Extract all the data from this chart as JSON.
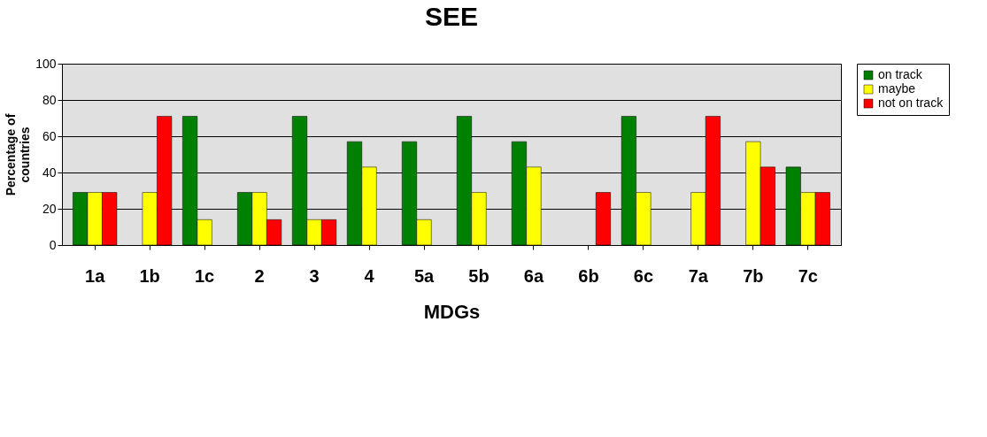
{
  "chart_data": {
    "type": "bar",
    "title": "SEE",
    "xlabel": "MDGs",
    "ylabel": "Percentage of countries",
    "categories": [
      "1a",
      "1b",
      "1c",
      "2",
      "3",
      "4",
      "5a",
      "5b",
      "6a",
      "6b",
      "6c",
      "7a",
      "7b",
      "7c"
    ],
    "series": [
      {
        "name": "on track",
        "color": "#008000",
        "values": [
          29,
          null,
          71,
          29,
          71,
          57,
          57,
          71,
          57,
          null,
          71,
          null,
          null,
          43
        ]
      },
      {
        "name": "maybe",
        "color": "#ffff00",
        "values": [
          29,
          29,
          14,
          29,
          14,
          43,
          14,
          29,
          43,
          null,
          29,
          29,
          57,
          29
        ]
      },
      {
        "name": "not on track",
        "color": "#ff0000",
        "values": [
          29,
          71,
          null,
          14,
          14,
          null,
          null,
          null,
          null,
          29,
          null,
          71,
          43,
          29
        ]
      }
    ],
    "ylim": [
      0,
      100
    ],
    "yticks": [
      0,
      20,
      40,
      60,
      80,
      100
    ],
    "grid": "y",
    "legend": "right"
  }
}
